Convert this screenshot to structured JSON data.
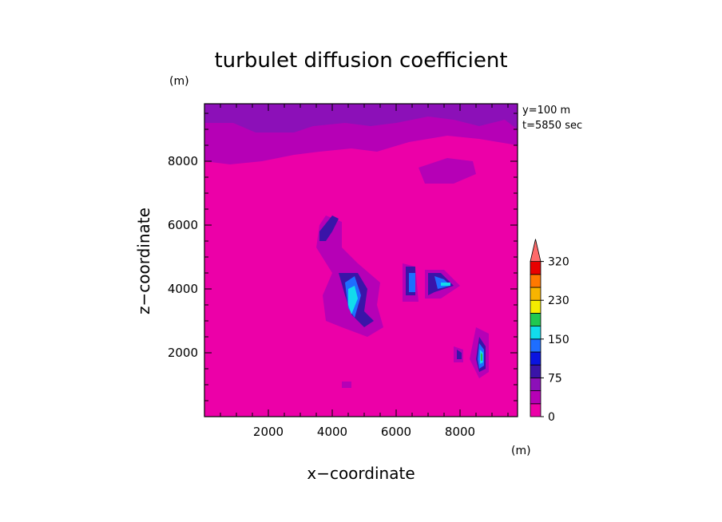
{
  "chart_data": {
    "type": "heatmap",
    "title": "turbulet diffusion coefficient",
    "xlabel": "x−coordinate",
    "ylabel": "z−coordinate",
    "x_unit": "(m)",
    "y_unit": "(m)",
    "annotation_lines": [
      "y=100  m",
      "t=5850  sec"
    ],
    "xlim": [
      0,
      9800
    ],
    "ylim": [
      0,
      9800
    ],
    "x_ticks": [
      2000,
      4000,
      6000,
      8000
    ],
    "y_ticks": [
      2000,
      4000,
      6000,
      8000
    ],
    "x_tick_labels": [
      "2000",
      "4000",
      "6000",
      "8000"
    ],
    "y_tick_labels": [
      "2000",
      "4000",
      "6000",
      "8000"
    ],
    "background_level_color": "#ec00a8",
    "colorbar": {
      "levels": [
        0,
        25,
        50,
        75,
        100,
        125,
        150,
        175,
        200,
        230,
        260,
        290,
        320
      ],
      "labeled_levels": [
        "0",
        "75",
        "150",
        "230",
        "320"
      ],
      "colors": [
        "#ec00a8",
        "#b600b6",
        "#8c10b8",
        "#3a14a8",
        "#0a14e0",
        "#1e6eff",
        "#12dcec",
        "#20c850",
        "#f4ec00",
        "#f8b400",
        "#ff7800",
        "#e80000"
      ],
      "extend_color": "#ff6a6a",
      "extend": "max"
    },
    "regions": [
      {
        "level": 1,
        "points": [
          [
            0,
            9800
          ],
          [
            9800,
            9800
          ],
          [
            9800,
            8500
          ],
          [
            8600,
            8700
          ],
          [
            7600,
            8800
          ],
          [
            6400,
            8600
          ],
          [
            5400,
            8300
          ],
          [
            4600,
            8400
          ],
          [
            3600,
            8300
          ],
          [
            2800,
            8200
          ],
          [
            1800,
            8000
          ],
          [
            800,
            7900
          ],
          [
            0,
            8000
          ]
        ]
      },
      {
        "level": 2,
        "points": [
          [
            0,
            9800
          ],
          [
            9800,
            9800
          ],
          [
            9800,
            9000
          ],
          [
            9400,
            9300
          ],
          [
            8600,
            9100
          ],
          [
            7800,
            9300
          ],
          [
            7000,
            9400
          ],
          [
            6000,
            9200
          ],
          [
            5200,
            9100
          ],
          [
            4400,
            9200
          ],
          [
            3400,
            9100
          ],
          [
            2800,
            8900
          ],
          [
            1600,
            8900
          ],
          [
            900,
            9200
          ],
          [
            0,
            9200
          ]
        ]
      },
      {
        "level": 1,
        "points": [
          [
            6700,
            7800
          ],
          [
            7600,
            8100
          ],
          [
            8400,
            8000
          ],
          [
            8500,
            7600
          ],
          [
            7800,
            7300
          ],
          [
            6900,
            7300
          ]
        ]
      },
      {
        "level": 1,
        "points": [
          [
            3800,
            6300
          ],
          [
            4300,
            6100
          ],
          [
            4300,
            5300
          ],
          [
            4800,
            4800
          ],
          [
            5500,
            4200
          ],
          [
            5400,
            3500
          ],
          [
            5600,
            2800
          ],
          [
            5100,
            2500
          ],
          [
            4300,
            2800
          ],
          [
            3800,
            3000
          ],
          [
            3700,
            3800
          ],
          [
            4000,
            4500
          ],
          [
            3500,
            5300
          ],
          [
            3600,
            6000
          ]
        ]
      },
      {
        "level": 1,
        "points": [
          [
            6200,
            4800
          ],
          [
            6600,
            4700
          ],
          [
            6700,
            3600
          ],
          [
            6200,
            3600
          ]
        ]
      },
      {
        "level": 1,
        "points": [
          [
            6900,
            4600
          ],
          [
            7500,
            4600
          ],
          [
            8000,
            4100
          ],
          [
            7400,
            3700
          ],
          [
            6900,
            3700
          ]
        ]
      },
      {
        "level": 1,
        "points": [
          [
            8500,
            2800
          ],
          [
            8900,
            2600
          ],
          [
            8900,
            1400
          ],
          [
            8600,
            1200
          ],
          [
            8300,
            1800
          ]
        ]
      },
      {
        "level": 1,
        "points": [
          [
            7800,
            2200
          ],
          [
            8100,
            2100
          ],
          [
            8100,
            1700
          ],
          [
            7800,
            1700
          ]
        ]
      },
      {
        "level": 1,
        "points": [
          [
            4300,
            1100
          ],
          [
            4600,
            1100
          ],
          [
            4600,
            900
          ],
          [
            4300,
            900
          ]
        ]
      },
      {
        "level": 3,
        "points": [
          [
            3600,
            5800
          ],
          [
            4000,
            6300
          ],
          [
            4200,
            6200
          ],
          [
            4000,
            5800
          ],
          [
            3800,
            5500
          ],
          [
            3600,
            5500
          ]
        ]
      },
      {
        "level": 3,
        "points": [
          [
            4200,
            4500
          ],
          [
            4800,
            4500
          ],
          [
            5100,
            4000
          ],
          [
            5000,
            3300
          ],
          [
            5300,
            3000
          ],
          [
            5000,
            2800
          ],
          [
            4600,
            3200
          ],
          [
            4400,
            3800
          ]
        ]
      },
      {
        "level": 3,
        "points": [
          [
            6300,
            4700
          ],
          [
            6600,
            4700
          ],
          [
            6600,
            3800
          ],
          [
            6300,
            3800
          ]
        ]
      },
      {
        "level": 3,
        "points": [
          [
            7000,
            4500
          ],
          [
            7400,
            4500
          ],
          [
            7800,
            4100
          ],
          [
            7200,
            3900
          ],
          [
            7000,
            3800
          ]
        ]
      },
      {
        "level": 3,
        "points": [
          [
            8600,
            2500
          ],
          [
            8800,
            2200
          ],
          [
            8800,
            1500
          ],
          [
            8600,
            1400
          ],
          [
            8500,
            1800
          ]
        ]
      },
      {
        "level": 3,
        "points": [
          [
            7900,
            2100
          ],
          [
            8050,
            2000
          ],
          [
            8050,
            1800
          ],
          [
            7900,
            1800
          ]
        ]
      },
      {
        "level": 5,
        "points": [
          [
            4400,
            4200
          ],
          [
            4700,
            4400
          ],
          [
            4900,
            3800
          ],
          [
            4700,
            3100
          ],
          [
            4500,
            3400
          ]
        ]
      },
      {
        "level": 5,
        "points": [
          [
            6400,
            4500
          ],
          [
            6600,
            4500
          ],
          [
            6600,
            3900
          ],
          [
            6400,
            3900
          ]
        ]
      },
      {
        "level": 5,
        "points": [
          [
            7200,
            4400
          ],
          [
            7500,
            4300
          ],
          [
            7700,
            4100
          ],
          [
            7300,
            4000
          ]
        ]
      },
      {
        "level": 5,
        "points": [
          [
            8600,
            2300
          ],
          [
            8750,
            2100
          ],
          [
            8750,
            1600
          ],
          [
            8600,
            1500
          ],
          [
            8550,
            1800
          ]
        ]
      },
      {
        "level": 6,
        "points": [
          [
            4500,
            4000
          ],
          [
            4700,
            4100
          ],
          [
            4800,
            3700
          ],
          [
            4600,
            3200
          ],
          [
            4500,
            3500
          ]
        ]
      },
      {
        "level": 6,
        "points": [
          [
            7400,
            4200
          ],
          [
            7700,
            4200
          ],
          [
            7700,
            4100
          ],
          [
            7400,
            4100
          ]
        ]
      },
      {
        "level": 6,
        "points": [
          [
            8620,
            2100
          ],
          [
            8720,
            2000
          ],
          [
            8720,
            1700
          ],
          [
            8620,
            1650
          ]
        ]
      },
      {
        "level": 7,
        "points": [
          [
            8650,
            2000
          ],
          [
            8700,
            1950
          ],
          [
            8700,
            1750
          ],
          [
            8650,
            1750
          ]
        ]
      }
    ]
  }
}
